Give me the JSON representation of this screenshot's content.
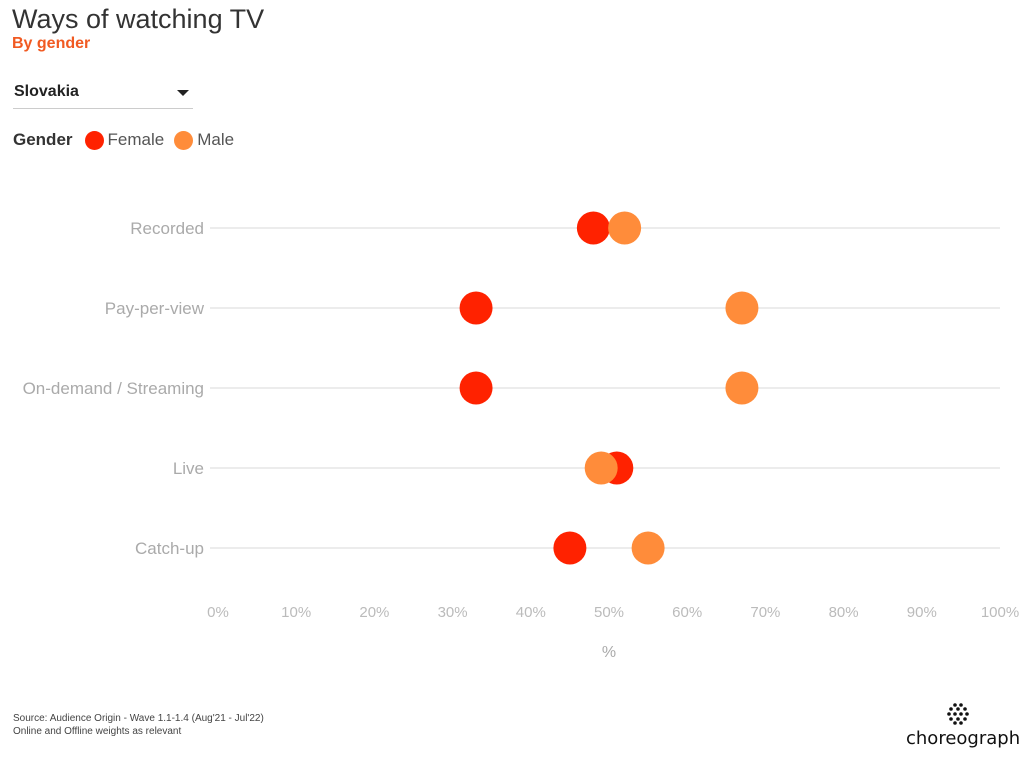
{
  "header": {
    "title": "Ways of watching TV",
    "subtitle": "By gender"
  },
  "filter": {
    "selected": "Slovakia"
  },
  "legend": {
    "title": "Gender",
    "items": [
      {
        "label": "Female",
        "color": "#ff2200"
      },
      {
        "label": "Male",
        "color": "#ff8c3a"
      }
    ]
  },
  "chart_data": {
    "type": "scatter",
    "xlabel": "%",
    "xlim": [
      0,
      100
    ],
    "x_ticks": [
      "0%",
      "10%",
      "20%",
      "30%",
      "40%",
      "50%",
      "60%",
      "70%",
      "80%",
      "90%",
      "100%"
    ],
    "categories": [
      "Recorded",
      "Pay-per-view",
      "On-demand / Streaming",
      "Live",
      "Catch-up"
    ],
    "series": [
      {
        "name": "Female",
        "color": "#ff2200",
        "values": [
          48,
          33,
          33,
          51,
          45
        ]
      },
      {
        "name": "Male",
        "color": "#ff8c3a",
        "values": [
          52,
          67,
          67,
          49,
          55
        ]
      }
    ],
    "grid": true,
    "legend_position": "top-left"
  },
  "footer": {
    "source_line1": "Source: Audience Origin - Wave 1.1-1.4 (Aug'21 - Jul'22)",
    "source_line2": "Online and Offline weights as relevant",
    "logo_text": "choreograph"
  }
}
